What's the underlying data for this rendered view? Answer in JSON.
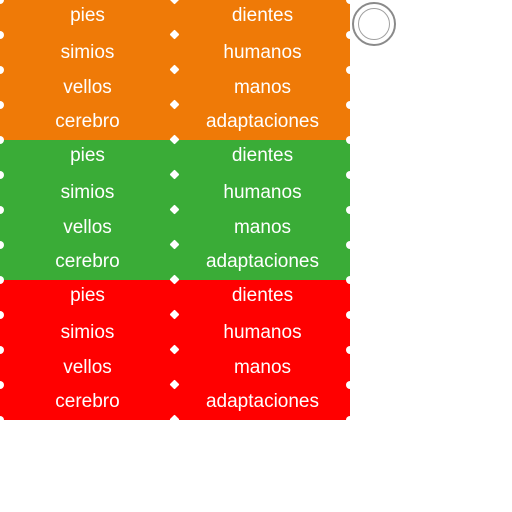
{
  "colors": {
    "orange": "#ef7a07",
    "green": "#3aac37",
    "red": "#ff0000",
    "tile_text": "#ffffff",
    "button_ring": "#8a8a8a"
  },
  "groups": [
    {
      "name": "orange",
      "tiles": [
        [
          "pies",
          "dientes"
        ],
        [
          "simios",
          "humanos"
        ],
        [
          "vellos",
          "manos"
        ],
        [
          "cerebro",
          "adaptaciones"
        ]
      ]
    },
    {
      "name": "green",
      "tiles": [
        [
          "pies",
          "dientes"
        ],
        [
          "simios",
          "humanos"
        ],
        [
          "vellos",
          "manos"
        ],
        [
          "cerebro",
          "adaptaciones"
        ]
      ]
    },
    {
      "name": "red",
      "tiles": [
        [
          "pies",
          "dientes"
        ],
        [
          "simios",
          "humanos"
        ],
        [
          "vellos",
          "manos"
        ],
        [
          "cerebro",
          "adaptaciones"
        ]
      ]
    }
  ],
  "controls": {
    "round_button_icon": "circle-icon"
  }
}
